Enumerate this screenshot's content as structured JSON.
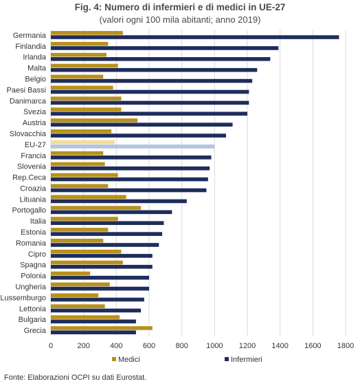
{
  "chart_data": {
    "type": "bar",
    "orientation": "horizontal",
    "title": "Fig. 4: Numero di infermieri e di medici in UE-27",
    "subtitle": "(valori ogni 100 mila abitanti; anno 2019)",
    "categories": [
      "Germania",
      "Finlandia",
      "Irlanda",
      "Malta",
      "Belgio",
      "Paesi Bassi",
      "Danimarca",
      "Svezia",
      "Austria",
      "Slovacchia",
      "EU-27",
      "Francia",
      "Slovenia",
      "Rep.Ceca",
      "Croazia",
      "Lituania",
      "Portogallo",
      "Italia",
      "Estonia",
      "Romania",
      "Cipro",
      "Spagna",
      "Polonia",
      "Ungheria",
      "Lussemburgo",
      "Lettonia",
      "Bulgaria",
      "Grecia"
    ],
    "series": [
      {
        "name": "Medici",
        "color": "#b8911c",
        "highlight_color": "#f2dc9a",
        "values": [
          440,
          350,
          340,
          410,
          320,
          380,
          430,
          430,
          530,
          370,
          390,
          320,
          330,
          410,
          350,
          460,
          550,
          410,
          350,
          320,
          430,
          440,
          240,
          360,
          290,
          330,
          420,
          620
        ]
      },
      {
        "name": "Infermieri",
        "color": "#1f2d5c",
        "highlight_color": "#b4c3e2",
        "values": [
          1760,
          1390,
          1340,
          1260,
          1230,
          1210,
          1210,
          1200,
          1110,
          1070,
          1000,
          980,
          970,
          960,
          950,
          830,
          740,
          690,
          680,
          660,
          620,
          620,
          600,
          600,
          570,
          550,
          520,
          520
        ]
      }
    ],
    "highlight_category": "EU-27",
    "xlim": [
      0,
      1800
    ],
    "xticks": [
      0,
      200,
      400,
      600,
      800,
      1000,
      1200,
      1400,
      1600,
      1800
    ],
    "grid": true,
    "legend_position": "bottom"
  },
  "source_note": "Fonte: Elaborazioni OCPI su dati Eurostat."
}
